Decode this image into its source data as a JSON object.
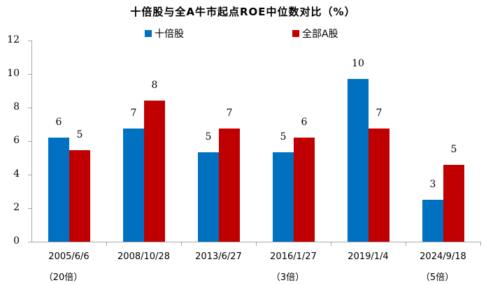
{
  "chart_data": {
    "type": "bar",
    "title": "十倍股与全A牛市起点ROE中位数对比（%）",
    "xlabel": "",
    "ylabel": "",
    "ylim": [
      0,
      12
    ],
    "yticks": [
      "0",
      "2",
      "4",
      "6",
      "8",
      "10",
      "12"
    ],
    "grid": false,
    "legend_position": "top",
    "categories": [
      "2005/6/6",
      "2008/10/28",
      "2013/6/27",
      "2016/1/27",
      "2019/1/4",
      "2024/9/18"
    ],
    "category_sublabels": [
      "（20倍）",
      "",
      "",
      "（3倍）",
      "",
      "（5倍）"
    ],
    "series": [
      {
        "name": "十倍股",
        "color": "#0070C0",
        "values": [
          6.2,
          6.75,
          5.35,
          5.35,
          9.7,
          2.5
        ],
        "data_labels": [
          "6",
          "7",
          "5",
          "5",
          "10",
          "3"
        ]
      },
      {
        "name": "全部A股",
        "color": "#C00000",
        "values": [
          5.45,
          8.4,
          6.75,
          6.2,
          6.75,
          4.6
        ],
        "data_labels": [
          "5",
          "8",
          "7",
          "6",
          "7",
          "5"
        ]
      }
    ]
  },
  "legend": {
    "items": [
      {
        "label": "十倍股",
        "color": "#0070C0"
      },
      {
        "label": "全部A股",
        "color": "#C00000"
      }
    ]
  }
}
